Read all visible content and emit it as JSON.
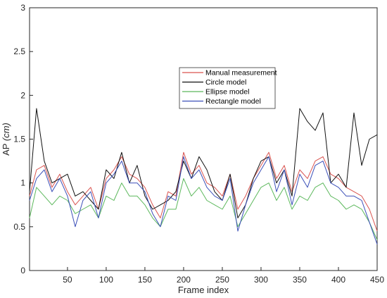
{
  "chart_data": {
    "type": "line",
    "title": "",
    "xlabel": "Frame index",
    "ylabel_main": "AP ",
    "ylabel_unit": "(cm)",
    "xlim": [
      1,
      450
    ],
    "ylim": [
      0,
      3
    ],
    "x_ticks": [
      50,
      100,
      150,
      200,
      250,
      300,
      350,
      400,
      450
    ],
    "y_ticks": [
      0,
      0.5,
      1,
      1.5,
      2,
      2.5,
      3
    ],
    "y_tick_labels": [
      "0",
      "0.5",
      "1",
      "1.5",
      "2",
      "2.5",
      "3"
    ],
    "grid": false,
    "legend_position": "upper-middle",
    "series_x": [
      1,
      10,
      20,
      30,
      40,
      50,
      60,
      70,
      80,
      90,
      100,
      110,
      120,
      130,
      140,
      150,
      160,
      170,
      180,
      190,
      200,
      210,
      220,
      230,
      240,
      250,
      260,
      270,
      280,
      290,
      300,
      310,
      320,
      330,
      340,
      350,
      360,
      370,
      380,
      390,
      400,
      410,
      420,
      430,
      440,
      450
    ],
    "series": [
      {
        "name": "Manual measurement",
        "color": "#d9534f",
        "values": [
          0.85,
          1.15,
          1.2,
          0.95,
          1.1,
          0.9,
          0.75,
          0.85,
          0.95,
          0.7,
          1.05,
          1.15,
          1.3,
          1.1,
          1.05,
          0.95,
          0.75,
          0.6,
          0.9,
          0.85,
          1.35,
          1.1,
          1.2,
          1.0,
          0.95,
          0.85,
          1.1,
          0.7,
          0.85,
          1.05,
          1.2,
          1.35,
          1.05,
          1.2,
          0.9,
          1.15,
          1.05,
          1.25,
          1.3,
          1.1,
          1.05,
          0.95,
          0.9,
          0.85,
          0.7,
          0.45
        ]
      },
      {
        "name": "Circle model",
        "color": "#111111",
        "values": [
          0.9,
          1.85,
          1.25,
          1.0,
          1.05,
          1.1,
          0.85,
          0.9,
          0.8,
          0.7,
          1.15,
          1.05,
          1.35,
          1.0,
          1.2,
          0.85,
          0.7,
          0.75,
          0.8,
          0.9,
          1.25,
          1.05,
          1.3,
          1.15,
          0.9,
          0.8,
          1.1,
          0.6,
          0.75,
          1.05,
          1.25,
          1.3,
          1.0,
          1.15,
          0.85,
          1.85,
          1.7,
          1.6,
          1.8,
          1.0,
          1.1,
          0.95,
          1.8,
          1.2,
          1.5,
          1.55
        ]
      },
      {
        "name": "Ellipse model",
        "color": "#5cb85c",
        "values": [
          0.6,
          0.95,
          0.85,
          0.75,
          0.85,
          0.8,
          0.65,
          0.7,
          0.75,
          0.6,
          0.85,
          0.8,
          1.0,
          0.85,
          0.85,
          0.75,
          0.6,
          0.5,
          0.7,
          0.7,
          1.05,
          0.85,
          0.95,
          0.8,
          0.75,
          0.7,
          0.85,
          0.5,
          0.65,
          0.8,
          0.95,
          1.0,
          0.8,
          0.95,
          0.7,
          0.85,
          0.8,
          0.95,
          1.0,
          0.85,
          0.8,
          0.7,
          0.75,
          0.7,
          0.55,
          0.35
        ]
      },
      {
        "name": "Rectangle model",
        "color": "#3b4fb8",
        "values": [
          0.8,
          1.05,
          1.15,
          0.9,
          1.05,
          0.85,
          0.5,
          0.8,
          0.9,
          0.6,
          1.0,
          1.1,
          1.25,
          1.0,
          1.0,
          0.9,
          0.65,
          0.5,
          0.85,
          0.8,
          1.3,
          1.05,
          1.15,
          0.95,
          0.85,
          0.8,
          1.05,
          0.45,
          0.75,
          1.0,
          1.15,
          1.3,
          0.9,
          1.15,
          0.75,
          1.1,
          0.95,
          1.2,
          1.25,
          1.0,
          0.95,
          0.85,
          0.85,
          0.8,
          0.55,
          0.3
        ]
      }
    ]
  }
}
